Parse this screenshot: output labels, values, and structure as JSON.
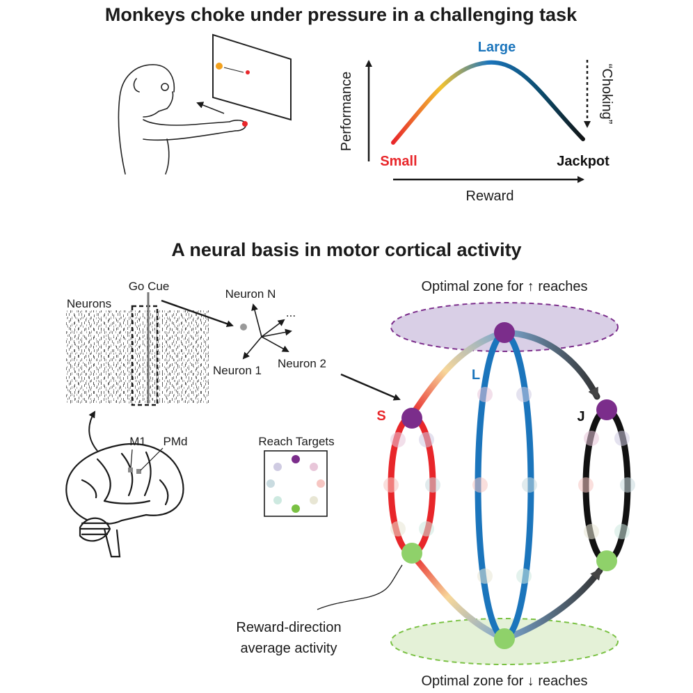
{
  "titles": {
    "top": "Monkeys choke under pressure in a challenging task",
    "bottom": "A neural basis in motor cortical activity"
  },
  "performance_plot": {
    "ylabel": "Performance",
    "xlabel": "Reward",
    "small": "Small",
    "large": "Large",
    "jackpot": "Jackpot",
    "choking": "“Choking”",
    "colors": {
      "small": "#e8262a",
      "large": "#1b75bc",
      "jackpot": "#111111"
    }
  },
  "neural": {
    "go_cue": "Go Cue",
    "neurons": "Neurons",
    "neuron_n": "Neuron N",
    "neuron_1": "Neuron 1",
    "neuron_2": "Neuron 2",
    "ellipsis": "...",
    "m1": "M1",
    "pmd": "PMd",
    "reach_targets": "Reach Targets",
    "reward_direction_line1": "Reward-direction",
    "reward_direction_line2": "average activity"
  },
  "state_space": {
    "optimal_up": "Optimal zone for ↑ reaches",
    "optimal_down": "Optimal zone for ↓ reaches",
    "label_s": "S",
    "label_l": "L",
    "label_j": "J",
    "colors": {
      "s": "#e8262a",
      "l": "#1b75bc",
      "j": "#111111",
      "up": "#7b2d8b",
      "down": "#7ac143",
      "up_zone": "#d9cfe6",
      "down_zone": "#e4f1d7"
    }
  }
}
